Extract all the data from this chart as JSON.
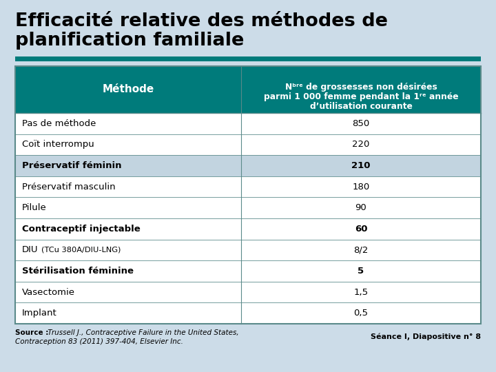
{
  "title_line1": "Efficacité relative des méthodes de",
  "title_line2": "planification familiale",
  "header_col1": "Méthode",
  "header_col2_l1": "Nᵇʳᵉ de grossesses non désirées",
  "header_col2_l2": "parmi 1 000 femme pendant la 1ʳᵉ année",
  "header_col2_l3": "d’utilisation courante",
  "rows": [
    {
      "method": "Pas de méthode",
      "value": "850",
      "bold": false,
      "highlight": false
    },
    {
      "method": "Coït interrompu",
      "value": "220",
      "bold": false,
      "highlight": false
    },
    {
      "method": "Préservatif féminin",
      "value": "210",
      "bold": true,
      "highlight": true
    },
    {
      "method": "Préservatif masculin",
      "value": "180",
      "bold": false,
      "highlight": false
    },
    {
      "method": "Pilule",
      "value": "90",
      "bold": false,
      "highlight": false
    },
    {
      "method": "Contraceptif injectable",
      "value": "60",
      "bold": true,
      "highlight": false
    },
    {
      "method": "DIU",
      "method2": "(TCu 380A/DIU-LNG)",
      "value": "8/2",
      "bold": false,
      "highlight": false,
      "mixed": true
    },
    {
      "method": "Stérilisation féminine",
      "value": "5",
      "bold": true,
      "highlight": false
    },
    {
      "method": "Vasectomie",
      "value": "1,5",
      "bold": false,
      "highlight": false
    },
    {
      "method": "Implant",
      "value": "0,5",
      "bold": false,
      "highlight": false
    }
  ],
  "source_bold": "Source :",
  "source_italic": " Trussell J., ",
  "source_italic2": "Contraceptive Failure in the United States,",
  "source_line2": "Contraception 83 (2011) 397-404, Elsevier Inc.",
  "footer_right": "Séance I, Diapositive n° 8",
  "bg_color": "#ccdce8",
  "header_bg": "#007b7b",
  "header_text_color": "#ffffff",
  "teal_bar_color": "#007b7b",
  "highlight_row_color": "#c2d4e0",
  "white_row_color": "#ffffff",
  "border_color": "#5a8a8a",
  "title_color": "#000000"
}
